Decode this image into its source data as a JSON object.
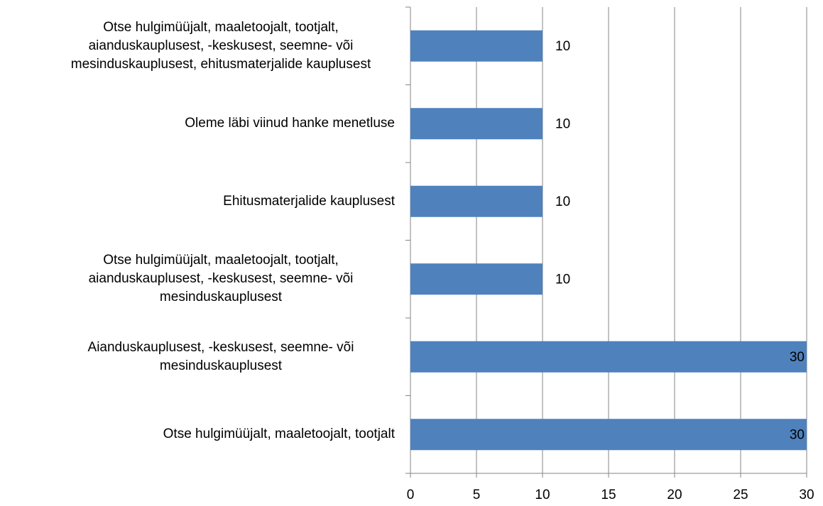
{
  "chart_data": {
    "type": "bar",
    "orientation": "horizontal",
    "categories": [
      "Otse hulgimüüjalt, maaletoojalt, tootjalt, aianduskauplusest, -keskusest, seemne- või mesinduskauplusest, ehitusmaterjalide kauplusest",
      "Oleme läbi viinud hanke menetluse",
      "Ehitusmaterjalide kauplusest",
      "Otse hulgimüüjalt, maaletoojalt, tootjalt, aianduskauplusest, -keskusest, seemne- või mesinduskauplusest",
      "Aianduskauplusest, -keskusest, seemne- või mesinduskauplusest",
      "Otse hulgimüüjalt, maaletoojalt, tootjalt"
    ],
    "values": [
      10,
      10,
      10,
      10,
      30,
      30
    ],
    "color": "#4f81bd",
    "xlim": [
      0,
      30
    ],
    "xticks": [
      0,
      5,
      10,
      15,
      20,
      25,
      30
    ],
    "grid": true
  }
}
